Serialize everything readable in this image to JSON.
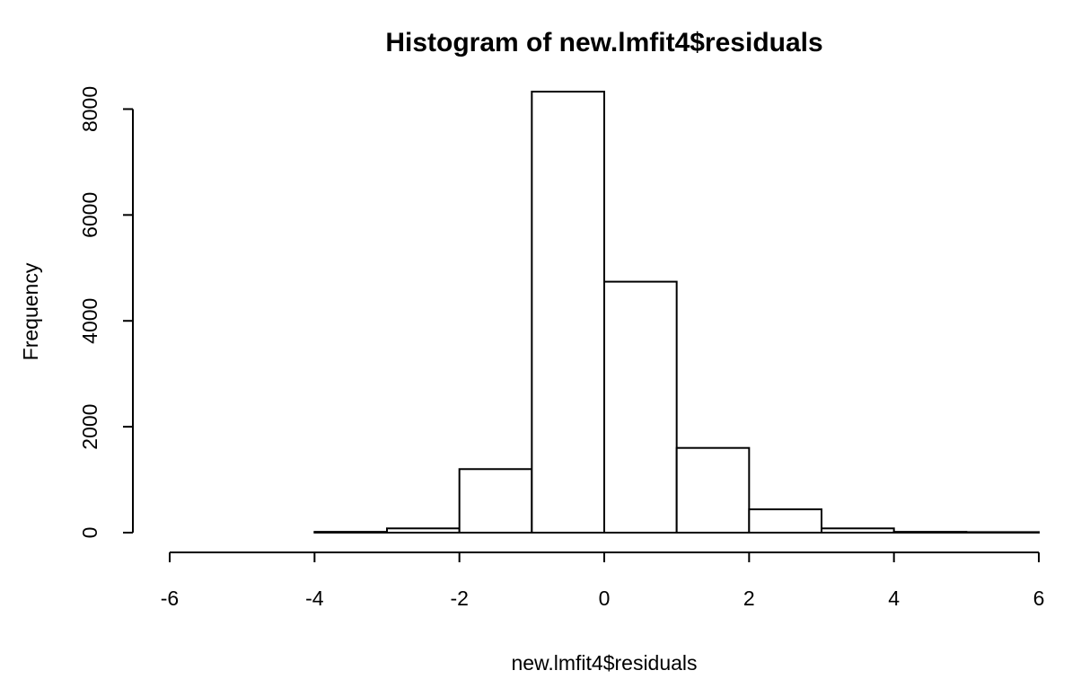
{
  "chart_data": {
    "type": "bar",
    "title": "Histogram of new.lmfit4$residuals",
    "xlabel": "new.lmfit4$residuals",
    "ylabel": "Frequency",
    "bins": [
      {
        "from": -6,
        "to": -5,
        "count": 0
      },
      {
        "from": -5,
        "to": -4,
        "count": 0
      },
      {
        "from": -4,
        "to": -3,
        "count": 15
      },
      {
        "from": -3,
        "to": -2,
        "count": 80
      },
      {
        "from": -2,
        "to": -1,
        "count": 1200
      },
      {
        "from": -1,
        "to": 0,
        "count": 8330
      },
      {
        "from": 0,
        "to": 1,
        "count": 4740
      },
      {
        "from": 1,
        "to": 2,
        "count": 1600
      },
      {
        "from": 2,
        "to": 3,
        "count": 440
      },
      {
        "from": 3,
        "to": 4,
        "count": 80
      },
      {
        "from": 4,
        "to": 5,
        "count": 15
      },
      {
        "from": 5,
        "to": 6,
        "count": 10
      }
    ],
    "xlim": [
      -6,
      6
    ],
    "ylim": [
      0,
      8330
    ],
    "x_ticks": [
      -6,
      -4,
      -2,
      0,
      2,
      4,
      6
    ],
    "y_ticks": [
      0,
      2000,
      4000,
      6000,
      8000
    ],
    "x_tick_labels": [
      "-6",
      "-4",
      "-2",
      "0",
      "2",
      "4",
      "6"
    ],
    "y_tick_labels": [
      "0",
      "2000",
      "4000",
      "6000",
      "8000"
    ],
    "grid": false,
    "legend": "none",
    "colors": {
      "bar_fill": "#ffffff",
      "bar_stroke": "#000000",
      "background": "#ffffff"
    }
  }
}
